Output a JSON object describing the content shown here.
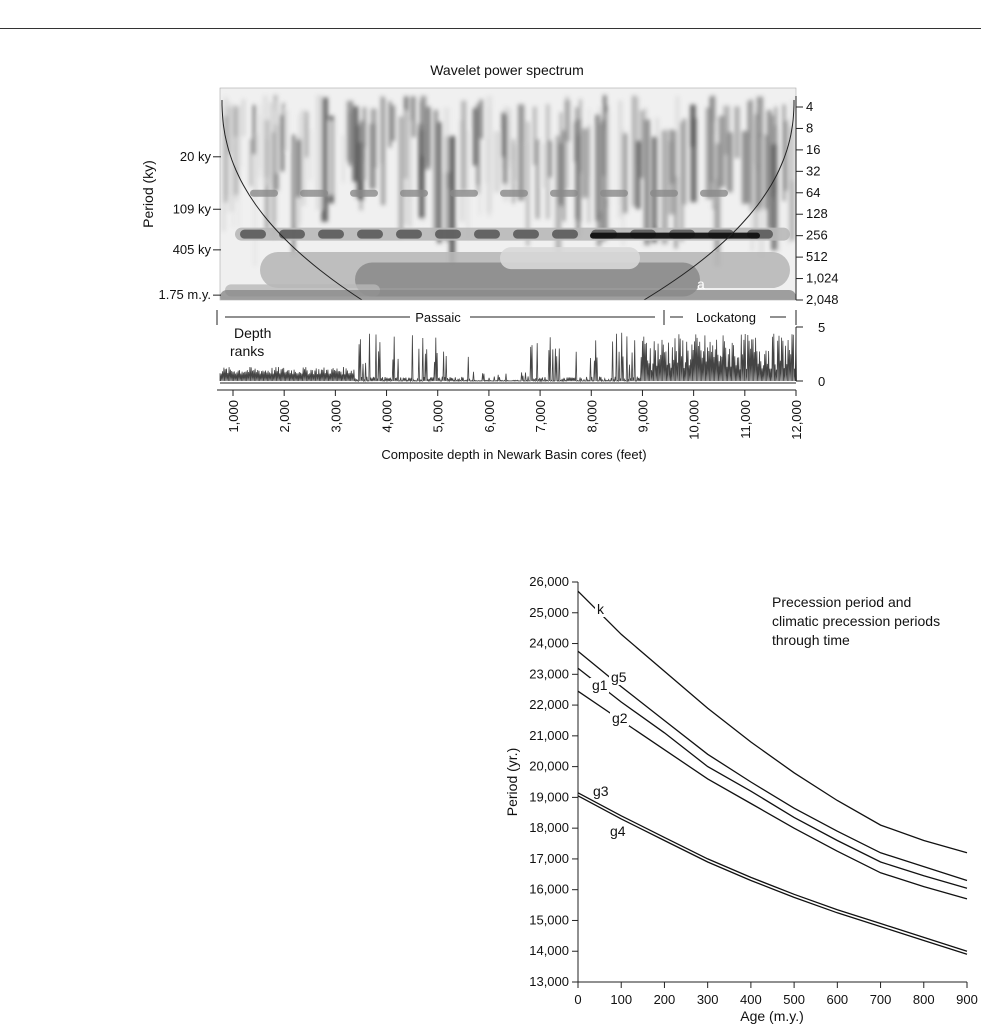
{
  "chart_data": [
    {
      "type": "heatmap",
      "title": "Wavelet power spectrum",
      "ylabel": "Period (ky)",
      "xlabel": "Composite depth in Newark Basin cores (feet)",
      "left_ticks": [
        "20 ky",
        "109 ky",
        "405 ky",
        "1.75 m.y."
      ],
      "right_ticks": [
        "4",
        "8",
        "16",
        "32",
        "64",
        "128",
        "256",
        "512",
        "1,024",
        "2,048"
      ],
      "x_ticks": [
        "1,000",
        "2,000",
        "3,000",
        "4,000",
        "5,000",
        "6,000",
        "7,000",
        "8,000",
        "9,000",
        "10,000",
        "11,000",
        "12,000"
      ],
      "xlim": [
        660,
        12000
      ],
      "formations": [
        "Passaic",
        "Lockatong"
      ],
      "panel_label": "a",
      "colors": [
        "#f0f0f0",
        "#d8d8d8",
        "#b8b8b8",
        "#8a8a8a",
        "#555555",
        "#111111"
      ]
    },
    {
      "type": "line",
      "label": "Depth ranks",
      "ylim": [
        0,
        5
      ],
      "y_ticks": [
        "0",
        "5"
      ],
      "color": "#444444"
    },
    {
      "type": "line",
      "title": "Precession period and climatic precession periods through time",
      "title_lines": [
        "Precession period and",
        "climatic precession periods",
        "through time"
      ],
      "xlabel": "Age (m.y.)",
      "ylabel": "Period (yr.)",
      "xlim": [
        0,
        900
      ],
      "ylim": [
        13000,
        26000
      ],
      "x_ticks": [
        0,
        100,
        200,
        300,
        400,
        500,
        600,
        700,
        800,
        900
      ],
      "y_ticks": [
        13000,
        14000,
        15000,
        16000,
        17000,
        18000,
        19000,
        20000,
        21000,
        22000,
        23000,
        24000,
        25000,
        26000
      ],
      "y_tick_labels": [
        "13,000",
        "14,000",
        "15,000",
        "16,000",
        "17,000",
        "18,000",
        "19,000",
        "20,000",
        "21,000",
        "22,000",
        "23,000",
        "24,000",
        "25,000",
        "26,000"
      ],
      "x": [
        0,
        100,
        200,
        300,
        400,
        500,
        600,
        700,
        800,
        900
      ],
      "series": [
        {
          "name": "k",
          "values": [
            25700,
            24300,
            23100,
            21900,
            20800,
            19800,
            18900,
            18100,
            17600,
            17200
          ]
        },
        {
          "name": "g5",
          "values": [
            23750,
            22600,
            21500,
            20400,
            19500,
            18650,
            17900,
            17200,
            16750,
            16300
          ]
        },
        {
          "name": "g1",
          "values": [
            23200,
            22100,
            21100,
            20000,
            19200,
            18350,
            17600,
            16900,
            16450,
            16050
          ]
        },
        {
          "name": "g2",
          "values": [
            22450,
            21500,
            20550,
            19600,
            18800,
            18000,
            17250,
            16550,
            16100,
            15700
          ]
        },
        {
          "name": "g3",
          "values": [
            19150,
            18400,
            17700,
            17000,
            16400,
            15850,
            15350,
            14900,
            14450,
            14000
          ]
        },
        {
          "name": "g4",
          "values": [
            19050,
            18300,
            17600,
            16900,
            16300,
            15750,
            15250,
            14800,
            14350,
            13900
          ]
        }
      ]
    }
  ]
}
